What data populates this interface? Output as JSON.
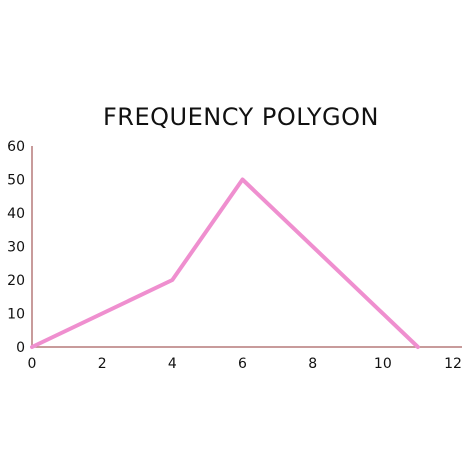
{
  "chart_data": {
    "type": "line",
    "title": "FREQUENCY  POLYGON",
    "xlabel": "",
    "ylabel": "",
    "x": [
      0,
      4,
      6,
      11
    ],
    "series": [
      {
        "values": [
          0,
          20,
          50,
          0
        ]
      }
    ],
    "xlim": [
      0,
      12
    ],
    "ylim": [
      0,
      60
    ],
    "xticks": [
      "0",
      "2",
      "4",
      "6",
      "8",
      "10",
      "12"
    ],
    "yticks": [
      "0",
      "10",
      "20",
      "30",
      "40",
      "50",
      "60"
    ],
    "grid": false,
    "line_color": "#ef8fcf",
    "axis_color": "#b57a7a"
  }
}
